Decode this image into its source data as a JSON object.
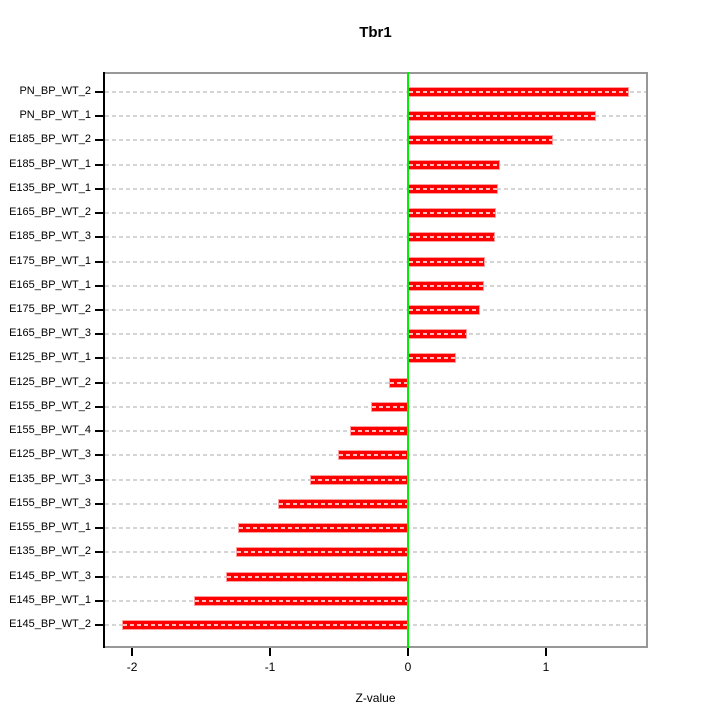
{
  "chart_data": {
    "type": "bar",
    "orientation": "horizontal",
    "title": "Tbr1",
    "xlabel": "Z-value",
    "ylabel": "",
    "categories": [
      "PN_BP_WT_2",
      "PN_BP_WT_1",
      "E185_BP_WT_2",
      "E185_BP_WT_1",
      "E135_BP_WT_1",
      "E165_BP_WT_2",
      "E185_BP_WT_3",
      "E175_BP_WT_1",
      "E165_BP_WT_1",
      "E175_BP_WT_2",
      "E165_BP_WT_3",
      "E125_BP_WT_1",
      "E125_BP_WT_2",
      "E155_BP_WT_2",
      "E155_BP_WT_4",
      "E125_BP_WT_3",
      "E135_BP_WT_3",
      "E155_BP_WT_3",
      "E155_BP_WT_1",
      "E135_BP_WT_2",
      "E145_BP_WT_3",
      "E145_BP_WT_1",
      "E145_BP_WT_2"
    ],
    "values": [
      1.6,
      1.36,
      1.05,
      0.67,
      0.65,
      0.64,
      0.63,
      0.56,
      0.55,
      0.52,
      0.43,
      0.35,
      -0.14,
      -0.27,
      -0.42,
      -0.51,
      -0.71,
      -0.94,
      -1.23,
      -1.25,
      -1.32,
      -1.55,
      -2.07
    ],
    "xlim": [
      -2.211,
      1.74
    ],
    "x_ticks": [
      "-2",
      "-1",
      "0",
      "1"
    ],
    "x_tick_values": [
      -2,
      -1,
      0,
      1
    ],
    "grid": true,
    "legend": false,
    "colors": {
      "bar_fill": "#ff0000",
      "bar_edge": "#ff9e9e",
      "zero_line": "#00ee00",
      "gridline": "#d5d5d5",
      "box_border": "#989898",
      "axis": "#000000",
      "text": "#000000",
      "background": "#ffffff"
    }
  }
}
